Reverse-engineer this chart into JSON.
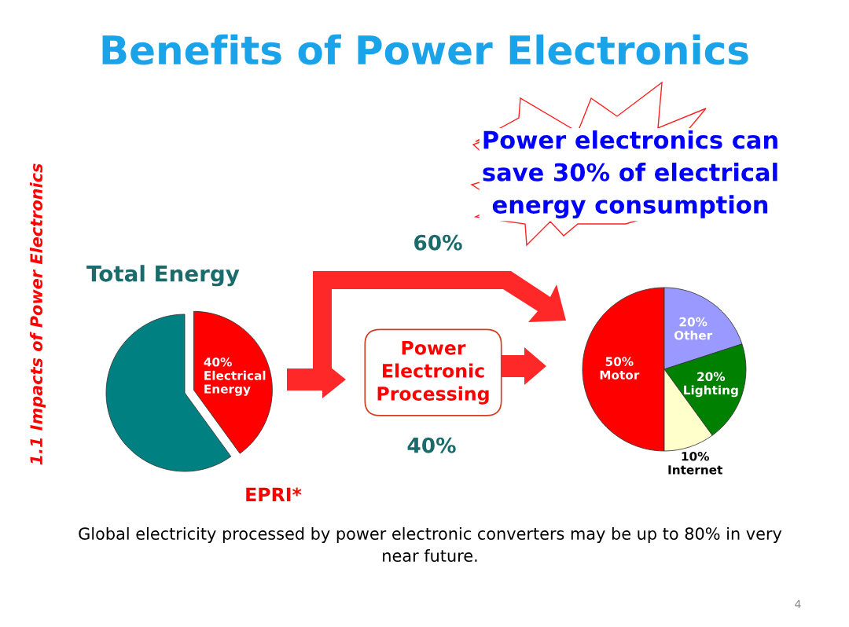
{
  "chart_data": [
    {
      "type": "other",
      "title": "Benefits of Power Electronics",
      "annotations": [
        "1.1 Impacts of Power Electronics",
        "Power electronics can save 30% of electrical energy consumption",
        "60%",
        "Power Electronic Processing",
        "40%",
        "Global electricity processed by power electronic converters may be up to 80% in very near future.",
        "4"
      ]
    },
    {
      "type": "pie",
      "title": "Total Energy",
      "categories": [
        "Electrical Energy",
        null
      ],
      "values": [
        40,
        60
      ],
      "colors": [
        "#ff0000",
        "#008080"
      ],
      "value_labels": [
        "40%",
        null
      ],
      "annotations": [
        "EPRI*"
      ]
    },
    {
      "type": "pie",
      "categories": [
        "Motor",
        "Other",
        "Lighting",
        "Internet"
      ],
      "values": [
        50,
        20,
        20,
        10
      ],
      "colors": [
        "#ff0000",
        "#9999ff",
        "#008000",
        "#ffffcc"
      ],
      "value_labels": [
        "50%",
        "20%",
        "20%",
        "10%"
      ]
    }
  ]
}
